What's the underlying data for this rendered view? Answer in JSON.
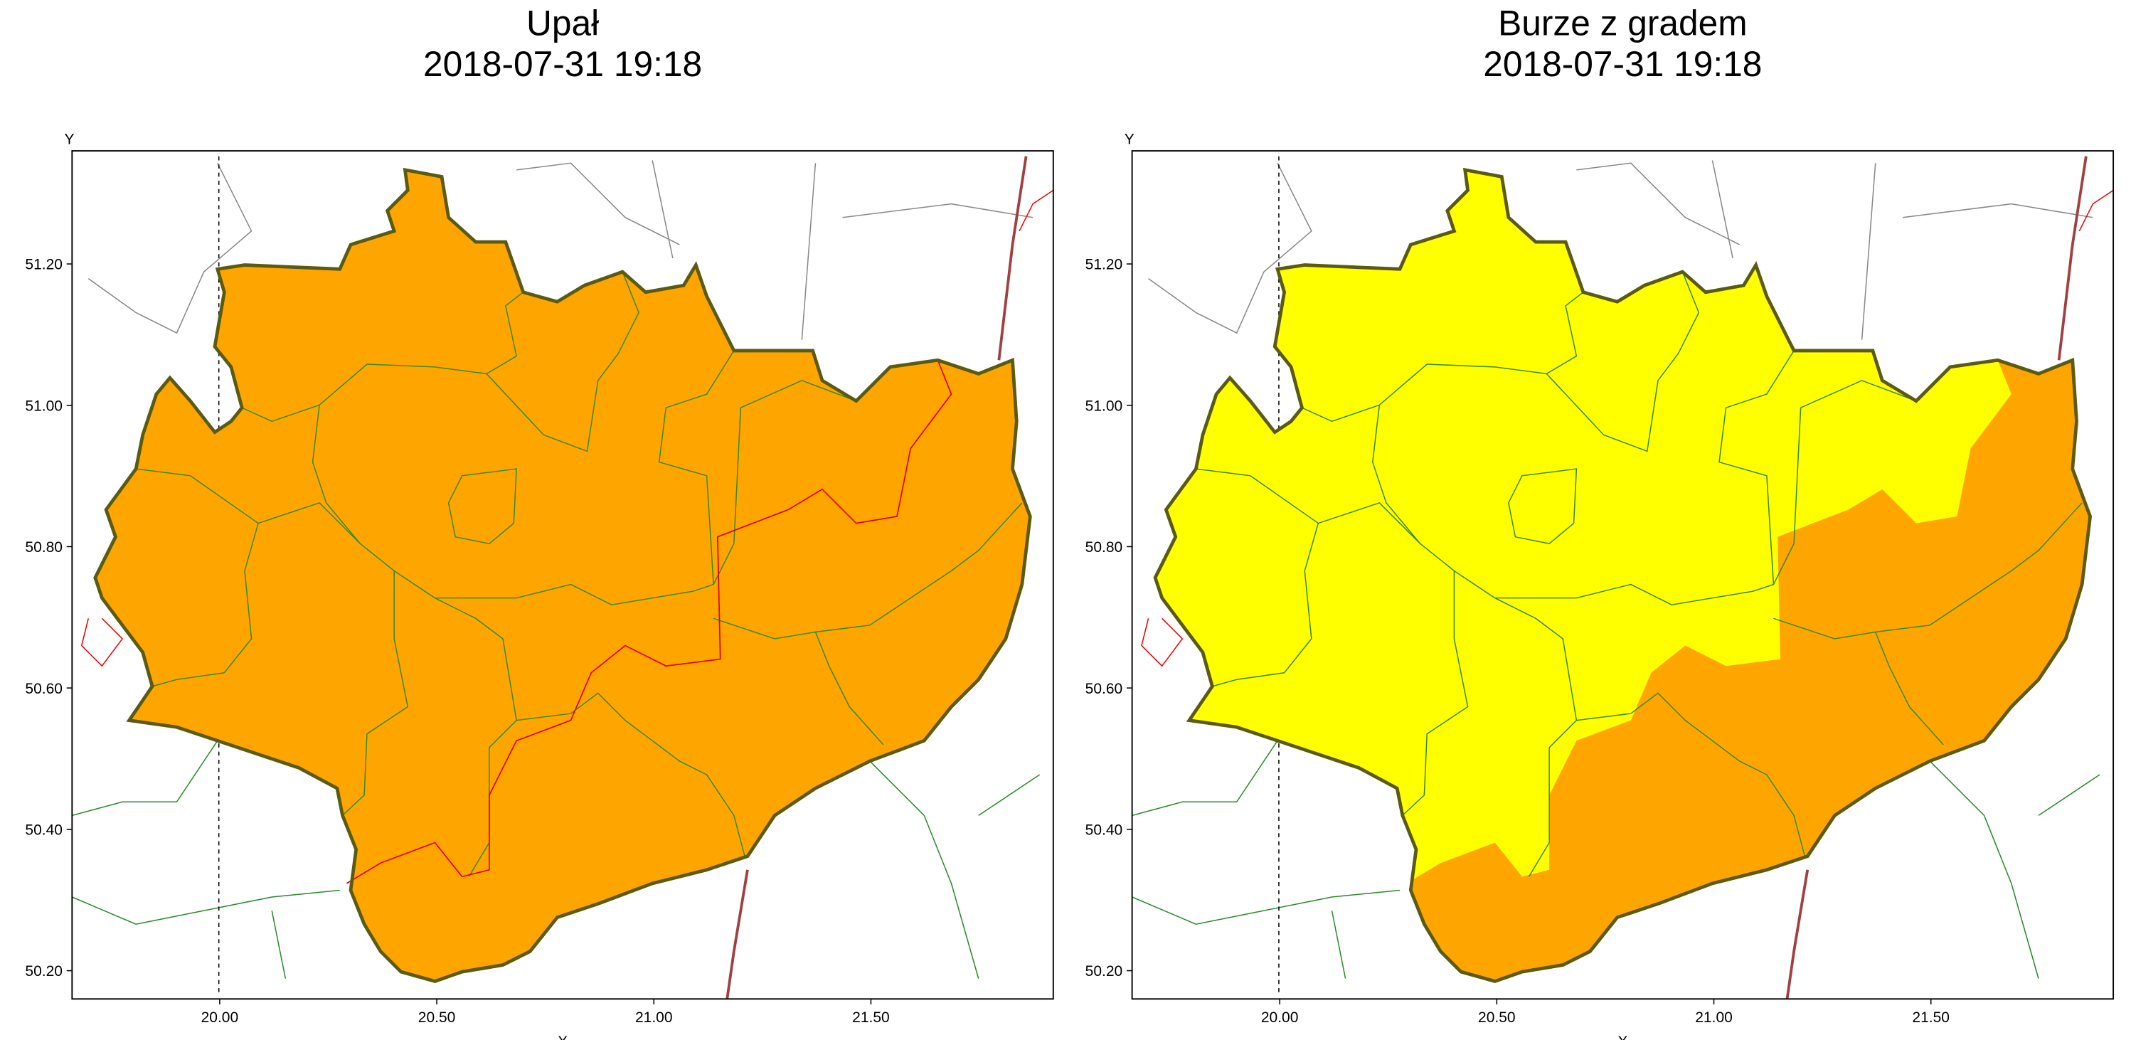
{
  "maps": [
    {
      "title": [
        "Upał",
        "2018-07-31 19:18"
      ],
      "x_label": "X",
      "y_label": "Y",
      "xlim": [
        19.66,
        21.92
      ],
      "ylim": [
        50.16,
        51.36
      ],
      "xticks": [
        {
          "value": 20,
          "label": "20.00"
        },
        {
          "value": 20.5,
          "label": "20.50"
        },
        {
          "value": 21,
          "label": "21.00"
        },
        {
          "value": 21.5,
          "label": "21.50"
        }
      ],
      "yticks": [
        {
          "value": 50.2,
          "label": "50.20"
        },
        {
          "value": 50.4,
          "label": "50.40"
        },
        {
          "value": 50.6,
          "label": "50.60"
        },
        {
          "value": 50.8,
          "label": "50.80"
        },
        {
          "value": 51,
          "label": "51.00"
        },
        {
          "value": 51.2,
          "label": "51.20"
        }
      ]
    },
    {
      "title": [
        "Burze z gradem",
        "2018-07-31 19:18"
      ],
      "x_label": "X",
      "y_label": "Y",
      "xlim": [
        19.66,
        21.92
      ],
      "ylim": [
        50.16,
        51.36
      ],
      "xticks": [
        {
          "value": 20,
          "label": "20.00"
        },
        {
          "value": 20.5,
          "label": "20.50"
        },
        {
          "value": 21,
          "label": "21.00"
        },
        {
          "value": 21.5,
          "label": "21.50"
        }
      ],
      "yticks": [
        {
          "value": 50.2,
          "label": "50.20"
        },
        {
          "value": 50.4,
          "label": "50.40"
        },
        {
          "value": 50.6,
          "label": "50.60"
        },
        {
          "value": 50.8,
          "label": "50.80"
        },
        {
          "value": 51,
          "label": "51.00"
        },
        {
          "value": 51.2,
          "label": "51.20"
        }
      ]
    }
  ]
}
